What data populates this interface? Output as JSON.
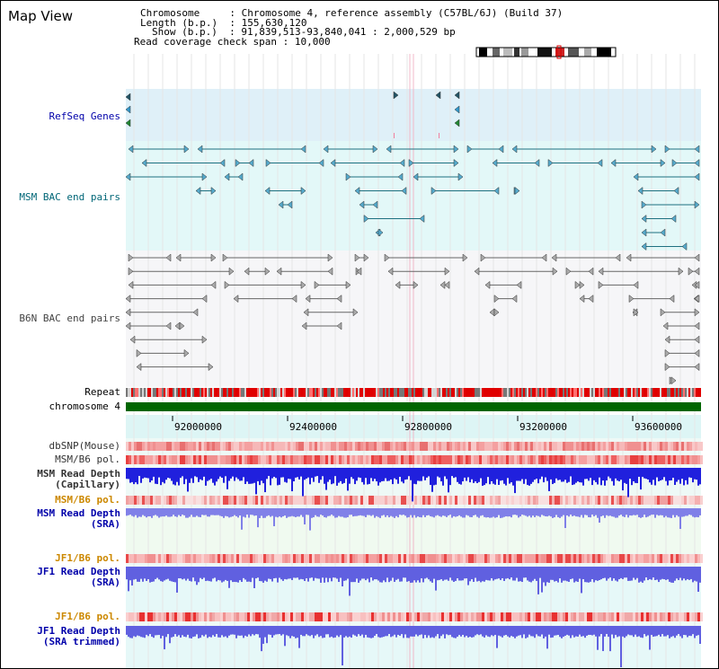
{
  "title": "Map View",
  "info": {
    "chromosome_label": "Chromosome",
    "chromosome_value": "Chromosome 4, reference assembly (C57BL/6J) (Build 37)",
    "length_label": "Length (b.p.)",
    "length_value": "155,630,120",
    "show_label": "Show (b.p.)",
    "show_value": "91,839,513-93,840,041 : 2,000,529 bp",
    "coverage_label": "Read coverage check span",
    "coverage_value": "10,000"
  },
  "tracks": {
    "refseq": "RefSeq Genes",
    "msm_bac": "MSM BAC end pairs",
    "b6n_bac": "B6N BAC end pairs",
    "repeat": "Repeat",
    "chromosome": "chromosome 4",
    "dbsnp": "dbSNP(Mouse)",
    "msm_b6_pol_1": "MSM/B6 pol.",
    "msm_depth_cap_1": "MSM Read Depth",
    "msm_depth_cap_2": "(Capillary)",
    "msm_b6_pol_2": "MSM/B6 pol.",
    "msm_depth_sra_1": "MSM Read Depth",
    "msm_depth_sra_2": "(SRA)",
    "jf1_b6_pol_1": "JF1/B6 pol.",
    "jf1_depth_1": "JF1 Read Depth",
    "jf1_depth_2": "(SRA)",
    "jf1_b6_pol_2": "JF1/B6 pol.",
    "jf1_trim_1": "JF1 Read Depth",
    "jf1_trim_2": "(SRA trimmed)"
  },
  "axis": {
    "ticks": [
      "92000000",
      "92400000",
      "92800000",
      "93200000",
      "93600000"
    ]
  },
  "colors": {
    "refseq_label": "#0000aa",
    "msm_label": "#006677",
    "b6n_label": "#444444",
    "pol_orange": "#cc8800",
    "depth_blue": "#0000aa",
    "chromosome_bar": "#006600",
    "repeat_red": "#e00000"
  }
}
